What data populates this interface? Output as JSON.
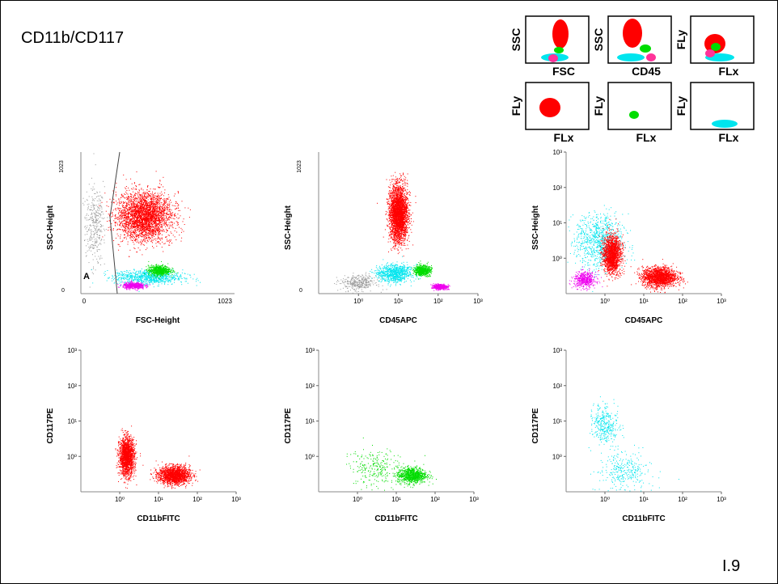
{
  "title": "CD11b/CD117",
  "page_number": "I.9",
  "colors": {
    "red": "#ff0000",
    "green": "#00dd00",
    "cyan": "#00e5ee",
    "magenta": "#ee00ee",
    "pink": "#ff3399",
    "gray": "#999999"
  },
  "legend_panels": [
    {
      "ylabel": "SSC",
      "xlabel": "FSC"
    },
    {
      "ylabel": "SSC",
      "xlabel": "CD45"
    },
    {
      "ylabel": "FLy",
      "xlabel": "FLx"
    },
    {
      "ylabel": "FLy",
      "xlabel": "FLx"
    },
    {
      "ylabel": "FLy",
      "xlabel": "FLx"
    },
    {
      "ylabel": "FLy",
      "xlabel": "FLx"
    }
  ],
  "chart_data": [
    {
      "type": "scatter",
      "xlabel": "FSC-Height",
      "ylabel": "SSC-Height",
      "scale": "linear",
      "xlim": [
        0,
        1023
      ],
      "ylim": [
        0,
        1023
      ],
      "x_ticks": [
        "0",
        "1023"
      ],
      "y_ticks": [
        "0",
        "1023"
      ],
      "gate_label": "A",
      "populations": [
        {
          "color": "gray",
          "x": 90,
          "y": 500,
          "spread": [
            70,
            300
          ]
        },
        {
          "color": "red",
          "x": 420,
          "y": 560,
          "spread": [
            200,
            190
          ]
        },
        {
          "color": "cyan",
          "x": 450,
          "y": 120,
          "spread": [
            250,
            60
          ]
        },
        {
          "color": "green",
          "x": 520,
          "y": 170,
          "spread": [
            80,
            40
          ]
        },
        {
          "color": "magenta",
          "x": 350,
          "y": 60,
          "spread": [
            80,
            25
          ]
        }
      ]
    },
    {
      "type": "scatter",
      "xlabel": "CD45APC",
      "ylabel": "SSC-Height",
      "scale": "log-x",
      "xlim": [
        0.1,
        1000
      ],
      "ylim": [
        0,
        1023
      ],
      "x_ticks": [
        "10⁰",
        "10¹",
        "10²",
        "10³"
      ],
      "y_ticks": [
        "0",
        "1023"
      ],
      "populations": [
        {
          "color": "gray",
          "x": 1,
          "y": 80,
          "spread": [
            2.5,
            60
          ]
        },
        {
          "color": "red",
          "x": 10,
          "y": 580,
          "spread": [
            1.6,
            220
          ]
        },
        {
          "color": "cyan",
          "x": 8,
          "y": 150,
          "spread": [
            2.5,
            70
          ]
        },
        {
          "color": "green",
          "x": 40,
          "y": 170,
          "spread": [
            1.5,
            40
          ]
        },
        {
          "color": "magenta",
          "x": 110,
          "y": 50,
          "spread": [
            1.4,
            20
          ]
        }
      ]
    },
    {
      "type": "scatter",
      "xlabel": "CD45APC",
      "ylabel": "SSC-Height",
      "scale": "log-log",
      "xlim": [
        0.1,
        1000
      ],
      "ylim": [
        0.1,
        1000
      ],
      "x_ticks": [
        "10⁰",
        "10¹",
        "10²",
        "10³"
      ],
      "y_ticks": [
        "10⁰",
        "10¹",
        "10²",
        "10³"
      ],
      "populations": [
        {
          "color": "cyan",
          "x": 0.7,
          "y": 3,
          "spread": [
            3.5,
            5
          ]
        },
        {
          "color": "red",
          "x": 1.5,
          "y": 1.3,
          "spread": [
            1.6,
            3
          ]
        },
        {
          "color": "red",
          "x": 25,
          "y": 0.3,
          "spread": [
            2.5,
            1.8
          ]
        },
        {
          "color": "magenta",
          "x": 0.3,
          "y": 0.25,
          "spread": [
            1.8,
            1.6
          ]
        }
      ]
    },
    {
      "type": "scatter",
      "xlabel": "CD11bFITC",
      "ylabel": "CD117PE",
      "scale": "log-log",
      "xlim": [
        0.1,
        1000
      ],
      "ylim": [
        0.1,
        1000
      ],
      "x_ticks": [
        "10⁰",
        "10¹",
        "10²",
        "10³"
      ],
      "y_ticks": [
        "10⁰",
        "10¹",
        "10²",
        "10³"
      ],
      "populations": [
        {
          "color": "red",
          "x": 1.5,
          "y": 1,
          "spread": [
            1.5,
            3
          ]
        },
        {
          "color": "red",
          "x": 25,
          "y": 0.3,
          "spread": [
            2.3,
            1.7
          ]
        }
      ]
    },
    {
      "type": "scatter",
      "xlabel": "CD11bFITC",
      "ylabel": "CD117PE",
      "scale": "log-log",
      "xlim": [
        0.1,
        1000
      ],
      "ylim": [
        0.1,
        1000
      ],
      "x_ticks": [
        "10⁰",
        "10¹",
        "10²",
        "10³"
      ],
      "y_ticks": [
        "10⁰",
        "10¹",
        "10²",
        "10³"
      ],
      "populations": [
        {
          "color": "green",
          "x": 25,
          "y": 0.3,
          "spread": [
            2.2,
            1.6
          ]
        },
        {
          "color": "green",
          "x": 3,
          "y": 0.5,
          "spread": [
            4,
            3
          ]
        }
      ]
    },
    {
      "type": "scatter",
      "xlabel": "CD11bFITC",
      "ylabel": "CD117PE",
      "scale": "log-log",
      "xlim": [
        0.1,
        1000
      ],
      "ylim": [
        0.1,
        1000
      ],
      "x_ticks": [
        "10⁰",
        "10¹",
        "10²",
        "10³"
      ],
      "y_ticks": [
        "10⁰",
        "10¹",
        "10²",
        "10³"
      ],
      "populations": [
        {
          "color": "cyan",
          "x": 1,
          "y": 8,
          "spread": [
            2,
            3
          ]
        },
        {
          "color": "cyan",
          "x": 3,
          "y": 0.4,
          "spread": [
            4,
            3
          ]
        }
      ]
    }
  ]
}
